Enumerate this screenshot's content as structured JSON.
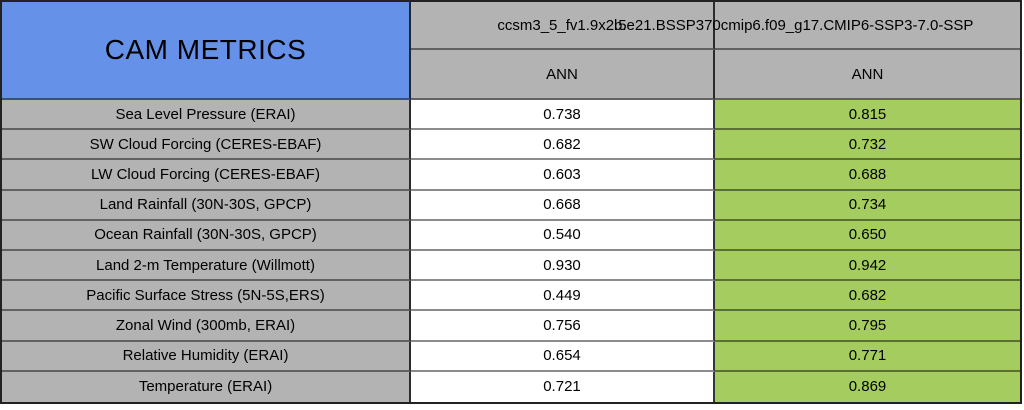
{
  "colors": {
    "header_blue": "#6592E8",
    "cell_gray": "#B3B3B3",
    "highlight_green": "#A4CC5E"
  },
  "table": {
    "corner_label": "CAM METRICS",
    "columns": [
      {
        "model": "ccsm3_5_fv1.9x2.5",
        "season": "ANN"
      },
      {
        "model": "b.e21.BSSP370cmip6.f09_g17.CMIP6-SSP3-7.0-SSP",
        "season": "ANN"
      }
    ],
    "rows": [
      {
        "label": "Sea Level Pressure (ERAI)",
        "values": [
          "0.738",
          "0.815"
        ]
      },
      {
        "label": "SW Cloud Forcing (CERES-EBAF)",
        "values": [
          "0.682",
          "0.732"
        ]
      },
      {
        "label": "LW Cloud Forcing (CERES-EBAF)",
        "values": [
          "0.603",
          "0.688"
        ]
      },
      {
        "label": "Land Rainfall (30N-30S, GPCP)",
        "values": [
          "0.668",
          "0.734"
        ]
      },
      {
        "label": "Ocean Rainfall (30N-30S, GPCP)",
        "values": [
          "0.540",
          "0.650"
        ]
      },
      {
        "label": "Land 2-m Temperature (Willmott)",
        "values": [
          "0.930",
          "0.942"
        ]
      },
      {
        "label": "Pacific Surface Stress (5N-5S,ERS)",
        "values": [
          "0.449",
          "0.682"
        ]
      },
      {
        "label": "Zonal Wind (300mb, ERAI)",
        "values": [
          "0.756",
          "0.795"
        ]
      },
      {
        "label": "Relative Humidity (ERAI)",
        "values": [
          "0.654",
          "0.771"
        ]
      },
      {
        "label": "Temperature (ERAI)",
        "values": [
          "0.721",
          "0.869"
        ]
      }
    ]
  },
  "chart_data": {
    "type": "table",
    "title": "CAM METRICS",
    "categories": [
      "Sea Level Pressure (ERAI)",
      "SW Cloud Forcing (CERES-EBAF)",
      "LW Cloud Forcing (CERES-EBAF)",
      "Land Rainfall (30N-30S, GPCP)",
      "Ocean Rainfall (30N-30S, GPCP)",
      "Land 2-m Temperature (Willmott)",
      "Pacific Surface Stress (5N-5S,ERS)",
      "Zonal Wind (300mb, ERAI)",
      "Relative Humidity (ERAI)",
      "Temperature (ERAI)"
    ],
    "series": [
      {
        "name": "ccsm3_5_fv1.9x2.5",
        "season": "ANN",
        "values": [
          0.738,
          0.682,
          0.603,
          0.668,
          0.54,
          0.93,
          0.449,
          0.756,
          0.654,
          0.721
        ]
      },
      {
        "name": "b.e21.BSSP370cmip6.f09_g17.CMIP6-SSP3-7.0-SSP",
        "season": "ANN",
        "values": [
          0.815,
          0.732,
          0.688,
          0.734,
          0.65,
          0.942,
          0.682,
          0.795,
          0.771,
          0.869
        ]
      }
    ],
    "layout": {
      "grid": true,
      "legend_position": "none",
      "highlight": "second model column shaded green"
    }
  }
}
